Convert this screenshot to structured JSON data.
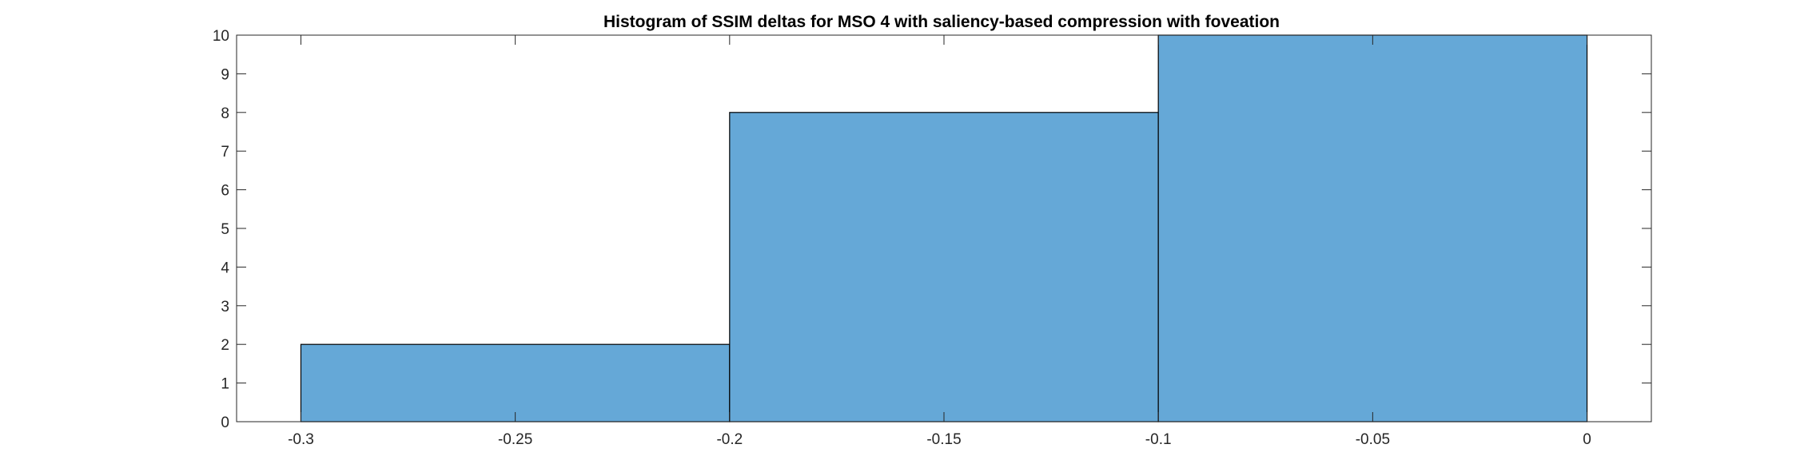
{
  "chart_data": {
    "type": "bar",
    "subtype": "histogram",
    "title": "Histogram of SSIM deltas for MSO 4 with saliency-based compression with foveation",
    "xlabel": "",
    "ylabel": "",
    "bins": [
      {
        "start": -0.3,
        "end": -0.2,
        "count": 2
      },
      {
        "start": -0.2,
        "end": -0.1,
        "count": 8
      },
      {
        "start": -0.1,
        "end": 0.0,
        "count": 10
      }
    ],
    "xlim": [
      -0.315,
      0.015
    ],
    "ylim": [
      0,
      10
    ],
    "xticks": [
      -0.3,
      -0.25,
      -0.2,
      -0.15,
      -0.1,
      -0.05,
      0
    ],
    "xtick_labels": [
      "-0.3",
      "-0.25",
      "-0.2",
      "-0.15",
      "-0.1",
      "-0.05",
      "0"
    ],
    "yticks": [
      0,
      1,
      2,
      3,
      4,
      5,
      6,
      7,
      8,
      9,
      10
    ],
    "ytick_labels": [
      "0",
      "1",
      "2",
      "3",
      "4",
      "5",
      "6",
      "7",
      "8",
      "9",
      "10"
    ],
    "bar_color": "#65a8d7",
    "edge_color": "#000000",
    "grid": false,
    "box": true
  }
}
